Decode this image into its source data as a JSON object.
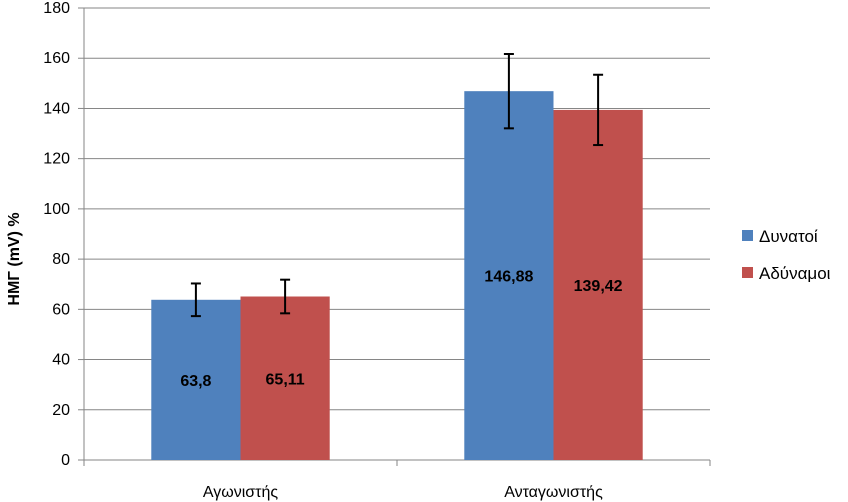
{
  "chart_data": {
    "type": "bar",
    "title": "",
    "xlabel": "",
    "ylabel": "ΗΜΓ (mV) %",
    "ylim": [
      0,
      180
    ],
    "yticks": [
      0,
      20,
      40,
      60,
      80,
      100,
      120,
      140,
      160,
      180
    ],
    "grid": true,
    "legend_position": "right",
    "categories": [
      "Αγωνιστής",
      "Ανταγωνιστής"
    ],
    "series": [
      {
        "name": "Δυνατοί",
        "color": "#4F81BD",
        "values": [
          63.8,
          146.88
        ],
        "errors": [
          6.5,
          14.8
        ],
        "value_labels": [
          "63,8",
          "146,88"
        ]
      },
      {
        "name": "Αδύναμοι",
        "color": "#C0504D",
        "values": [
          65.11,
          139.42
        ],
        "errors": [
          6.7,
          14.0
        ],
        "value_labels": [
          "65,11",
          "139,42"
        ]
      }
    ]
  }
}
